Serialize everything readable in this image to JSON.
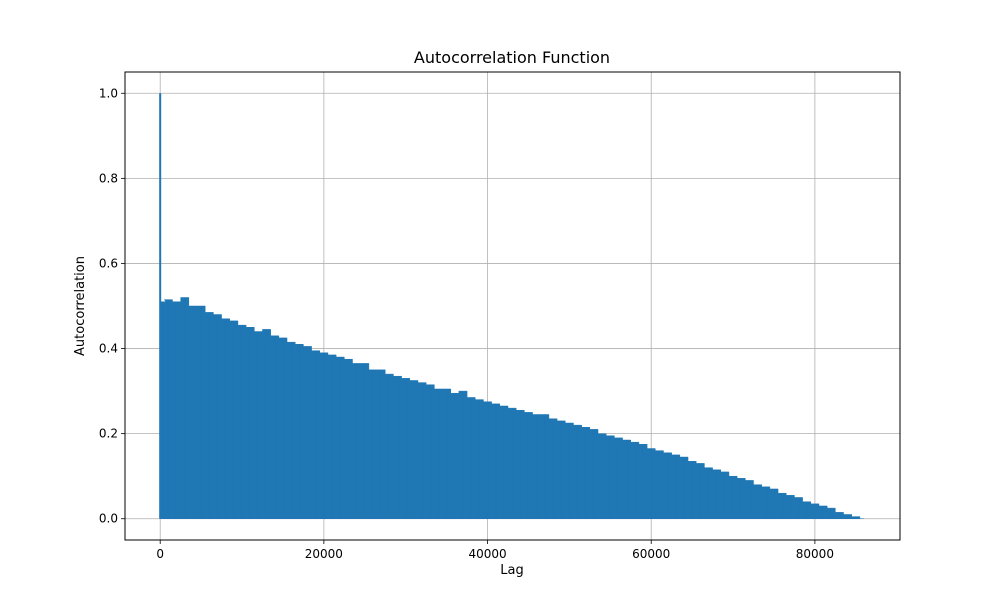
{
  "chart_data": {
    "type": "bar",
    "title": "Autocorrelation Function",
    "xlabel": "Lag",
    "ylabel": "Autocorrelation",
    "xlim": [
      -4300,
      90400
    ],
    "ylim": [
      -0.05,
      1.05
    ],
    "x_ticks": [
      0,
      20000,
      40000,
      60000,
      80000
    ],
    "x_tick_labels": [
      "0",
      "20000",
      "40000",
      "60000",
      "80000"
    ],
    "y_ticks": [
      0.0,
      0.2,
      0.4,
      0.6,
      0.8,
      1.0
    ],
    "y_tick_labels": [
      "0.0",
      "0.2",
      "0.4",
      "0.6",
      "0.8",
      "1.0"
    ],
    "grid": true,
    "bar_color": "#1f77b4",
    "lag0": {
      "x": 0,
      "y": 1.0
    },
    "x": [
      200,
      1000,
      2000,
      3000,
      4000,
      5000,
      6000,
      7000,
      8000,
      9000,
      10000,
      11000,
      12000,
      13000,
      14000,
      15000,
      16000,
      17000,
      18000,
      19000,
      20000,
      21000,
      22000,
      23000,
      24000,
      25000,
      26000,
      27000,
      28000,
      29000,
      30000,
      31000,
      32000,
      33000,
      34000,
      35000,
      36000,
      37000,
      38000,
      39000,
      40000,
      41000,
      42000,
      43000,
      44000,
      45000,
      46000,
      47000,
      48000,
      49000,
      50000,
      51000,
      52000,
      53000,
      54000,
      55000,
      56000,
      57000,
      58000,
      59000,
      60000,
      61000,
      62000,
      63000,
      64000,
      65000,
      66000,
      67000,
      68000,
      69000,
      70000,
      71000,
      72000,
      73000,
      74000,
      75000,
      76000,
      77000,
      78000,
      79000,
      80000,
      81000,
      82000,
      83000,
      84000,
      85000,
      86000
    ],
    "values": [
      0.51,
      0.515,
      0.51,
      0.52,
      0.5,
      0.5,
      0.485,
      0.48,
      0.47,
      0.465,
      0.455,
      0.45,
      0.44,
      0.445,
      0.43,
      0.425,
      0.415,
      0.41,
      0.405,
      0.395,
      0.39,
      0.385,
      0.38,
      0.375,
      0.365,
      0.365,
      0.35,
      0.35,
      0.34,
      0.335,
      0.33,
      0.325,
      0.32,
      0.315,
      0.305,
      0.305,
      0.295,
      0.3,
      0.285,
      0.28,
      0.275,
      0.27,
      0.265,
      0.26,
      0.255,
      0.25,
      0.245,
      0.245,
      0.235,
      0.23,
      0.225,
      0.22,
      0.215,
      0.21,
      0.2,
      0.195,
      0.19,
      0.185,
      0.18,
      0.175,
      0.165,
      0.16,
      0.155,
      0.15,
      0.145,
      0.135,
      0.13,
      0.12,
      0.115,
      0.11,
      0.1,
      0.095,
      0.09,
      0.08,
      0.075,
      0.07,
      0.06,
      0.055,
      0.05,
      0.04,
      0.035,
      0.03,
      0.025,
      0.015,
      0.01,
      0.005,
      0.0
    ]
  }
}
